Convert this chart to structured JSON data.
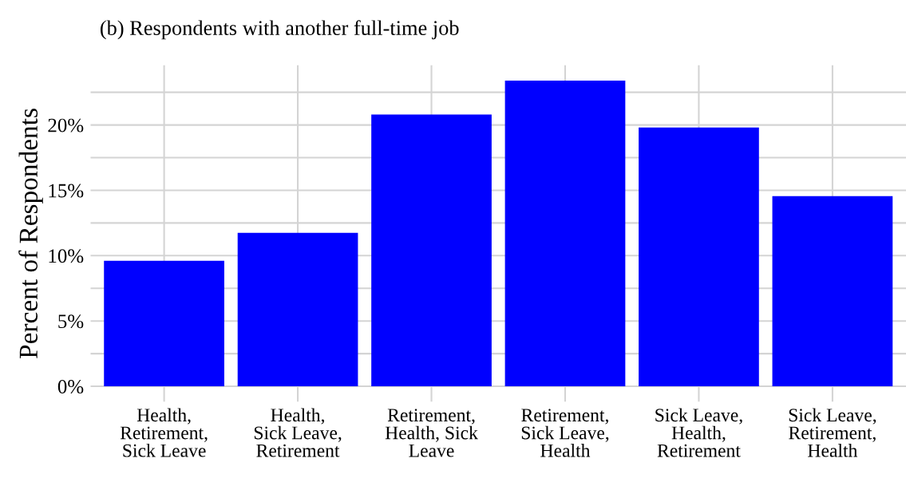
{
  "chart_data": {
    "type": "bar",
    "title": "(b) Respondents with another full-time job",
    "ylabel": "Percent of Respondents",
    "categories": [
      "Health,\nRetirement,\nSick Leave",
      "Health,\nSick Leave,\nRetirement",
      "Retirement,\nHealth, Sick\nLeave",
      "Retirement,\nSick Leave,\nHealth",
      "Sick Leave,\nHealth,\nRetirement",
      "Sick Leave,\nRetirement,\nHealth"
    ],
    "values": [
      9.6,
      11.75,
      20.8,
      23.4,
      19.8,
      14.55
    ],
    "color": "#0000ff",
    "ylim": [
      -1.17,
      24.57
    ],
    "yticks": [
      {
        "value": 0,
        "label": "0%"
      },
      {
        "value": 2.5,
        "label": null
      },
      {
        "value": 5,
        "label": "5%"
      },
      {
        "value": 7.5,
        "label": null
      },
      {
        "value": 10,
        "label": "10%"
      },
      {
        "value": 12.5,
        "label": null
      },
      {
        "value": 15,
        "label": "15%"
      },
      {
        "value": 17.5,
        "label": null
      },
      {
        "value": 20,
        "label": "20%"
      },
      {
        "value": 22.5,
        "label": null
      }
    ],
    "grid": true
  }
}
